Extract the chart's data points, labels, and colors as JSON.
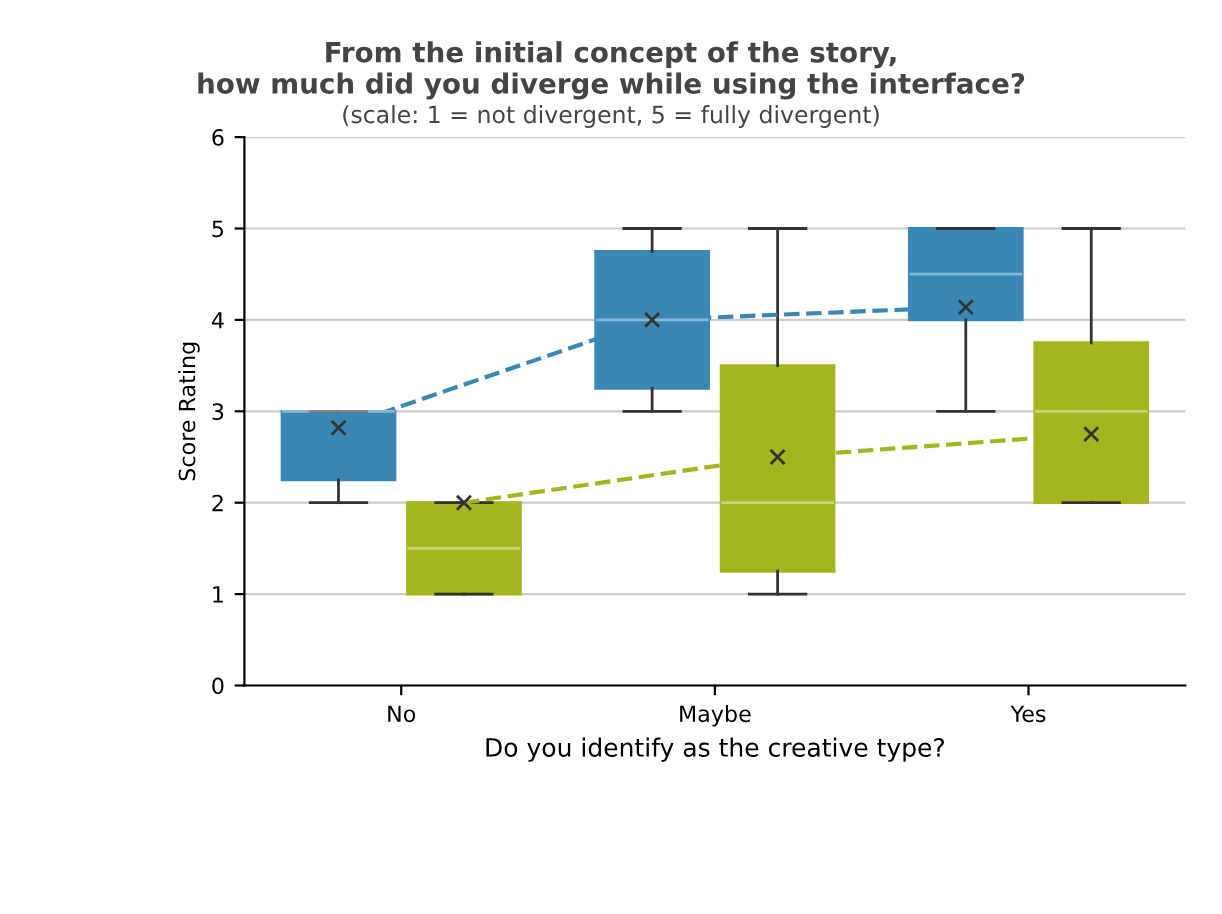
{
  "chart_data": {
    "type": "box",
    "title": "From the initial concept of the story,\nhow much did you diverge while using the interface?",
    "subtitle": "(scale: 1 = not divergent, 5 = fully divergent)",
    "xlabel": "Do you identify as the creative type?",
    "ylabel": "Score Rating",
    "categories": [
      "No",
      "Maybe",
      "Yes"
    ],
    "ylim": [
      0,
      6
    ],
    "yticks": [
      0,
      1,
      2,
      3,
      4,
      5,
      6
    ],
    "grid": "y",
    "line_style": "dashed",
    "series": [
      {
        "color": "#3a87b5",
        "boxes": [
          {
            "low": 2,
            "q1": 2.25,
            "median": 3,
            "q3": 3,
            "high": 3,
            "mean": 2.82
          },
          {
            "low": 3,
            "q1": 3.25,
            "median": 4,
            "q3": 4.75,
            "high": 5,
            "mean": 4
          },
          {
            "low": 3,
            "q1": 4,
            "median": 4.5,
            "q3": 5,
            "high": 5,
            "mean": 4.14
          }
        ]
      },
      {
        "color": "#a3b51f",
        "boxes": [
          {
            "low": 1,
            "q1": 1,
            "median": 1.5,
            "q3": 2,
            "high": 2,
            "mean": 2
          },
          {
            "low": 1,
            "q1": 1.25,
            "median": 2,
            "q3": 3.5,
            "high": 5,
            "mean": 2.5
          },
          {
            "low": 2,
            "q1": 2,
            "median": 3,
            "q3": 3.75,
            "high": 5,
            "mean": 2.75
          }
        ]
      },
      {
        "type": "line",
        "color": "#3a87b5",
        "values": [
          2.82,
          4,
          4.14
        ]
      },
      {
        "type": "line",
        "color": "#a3b51f",
        "values": [
          2,
          2.5,
          2.75
        ]
      }
    ]
  }
}
